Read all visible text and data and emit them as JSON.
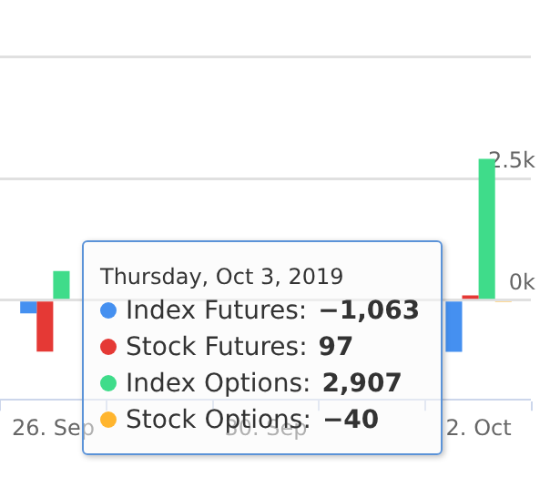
{
  "chart_data": {
    "type": "bar",
    "categories": [
      "26. Sep",
      null,
      "30. Sep",
      null,
      "2. Oct"
    ],
    "series": [
      {
        "name": "Index Futures:",
        "color": "#4590f0",
        "values": [
          -270,
          null,
          null,
          null,
          -1063
        ]
      },
      {
        "name": "Stock Futures:",
        "color": "#e53935",
        "values": [
          -1060,
          null,
          null,
          null,
          97
        ]
      },
      {
        "name": "Index Options:",
        "color": "#3fdc8a",
        "values": [
          600,
          null,
          null,
          null,
          2907
        ]
      },
      {
        "name": "Stock Options:",
        "color": "#ffb52e",
        "values": [
          null,
          null,
          null,
          null,
          -40
        ]
      }
    ],
    "ylim": [
      -2050,
      5500
    ],
    "yticks": [
      {
        "value": 0,
        "label": "0k"
      },
      {
        "value": 2500,
        "label": "2.5k"
      },
      {
        "value": 5000,
        "label": null
      }
    ],
    "grid": "y",
    "legend": "bottom left",
    "annotations": [
      "Thursday, Oct 3, 2019",
      "−1,063",
      "97",
      "2,907",
      "−40"
    ]
  }
}
